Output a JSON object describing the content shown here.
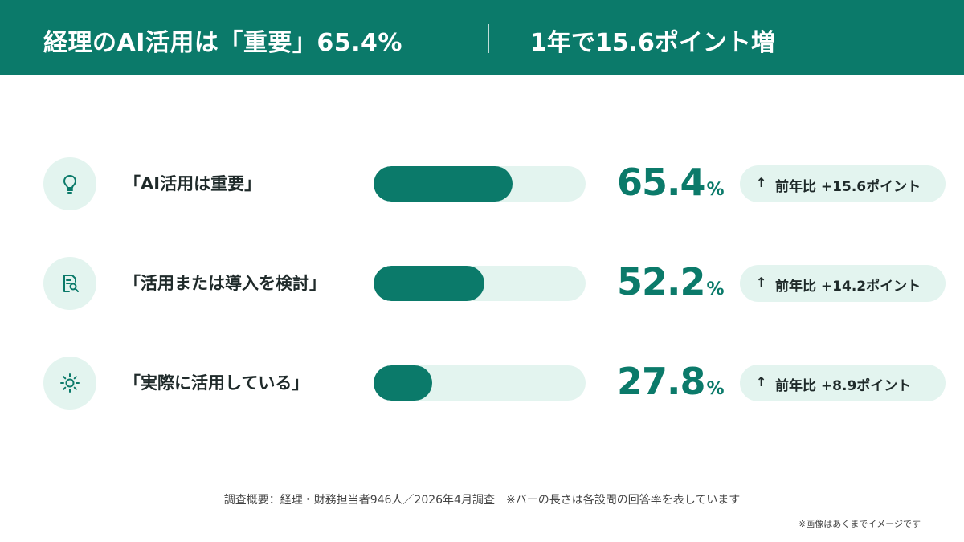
{
  "header": {
    "title": "経理のAI活用は「重要」65.4%",
    "subtitle": "1年で15.6ポイント増"
  },
  "chart_data": {
    "type": "bar",
    "orientation": "horizontal",
    "categories": [
      "「AI活用は重要」",
      "「活用または導入を検討」",
      "「実際に活用している」"
    ],
    "values": [
      65.4,
      52.2,
      27.8
    ],
    "value_labels": [
      "65.4",
      "52.2",
      "27.8"
    ],
    "unit": "%",
    "yoy_labels": [
      "前年比 +15.6ポイント",
      "前年比 +14.2ポイント",
      "前年比 +8.9ポイント"
    ],
    "yoy_change": [
      15.6,
      14.2,
      8.9
    ],
    "xlim": [
      0,
      100
    ],
    "icons": [
      "lightbulb-icon",
      "document-search-icon",
      "sun-icon"
    ],
    "colors": {
      "bar": "#0b7a6a",
      "track": "#e3f4ef",
      "header": "#0b7a6a"
    }
  },
  "badge_arrow": "↑",
  "footnote": "調査概要：経理・財務担当者946人／2026年4月調査　※バーの長さは各設問の回答率を表しています",
  "disclaimer": "※画像はあくまでイメージです"
}
